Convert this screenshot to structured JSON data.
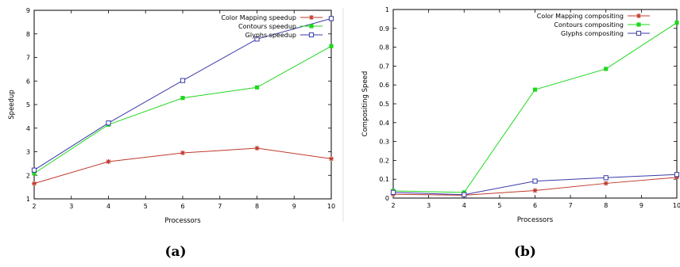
{
  "captions": [
    "(a)",
    "(b)"
  ],
  "chart_data": [
    {
      "type": "line",
      "xlabel": "Processors",
      "ylabel": "Speedup",
      "x": [
        2,
        4,
        6,
        8,
        10
      ],
      "xlim": [
        2,
        10
      ],
      "ylim": [
        1,
        9
      ],
      "xticks": [
        "2",
        "3",
        "4",
        "5",
        "6",
        "7",
        "8",
        "9",
        "10"
      ],
      "yticks": [
        "1",
        "2",
        "3",
        "4",
        "5",
        "6",
        "7",
        "8",
        "9"
      ],
      "grid": false,
      "legend_position": "top-right",
      "series": [
        {
          "name": "Color Mapping speedup",
          "values": [
            1.65,
            2.58,
            2.95,
            3.15,
            2.7
          ],
          "color": "#c0392b",
          "marker": "star"
        },
        {
          "name": "Contours speedup",
          "values": [
            2.08,
            4.15,
            5.28,
            5.73,
            7.48
          ],
          "color": "#1fd81f",
          "marker": "filled-square"
        },
        {
          "name": "Glyphs speedup",
          "values": [
            2.22,
            4.22,
            6.02,
            7.78,
            8.65
          ],
          "color": "#3a3aa8",
          "marker": "open-square"
        }
      ]
    },
    {
      "type": "line",
      "xlabel": "Processors",
      "ylabel": "Compositing Speed",
      "x": [
        2,
        4,
        6,
        8,
        10
      ],
      "xlim": [
        2,
        10
      ],
      "ylim": [
        0,
        1
      ],
      "xticks": [
        "2",
        "3",
        "4",
        "5",
        "6",
        "7",
        "8",
        "9",
        "10"
      ],
      "yticks": [
        "0",
        "0.1",
        "0.2",
        "0.3",
        "0.4",
        "0.5",
        "0.6",
        "0.7",
        "0.8",
        "0.9",
        "1"
      ],
      "grid": false,
      "legend_position": "top-right",
      "series": [
        {
          "name": "Color Mapping compositing",
          "values": [
            0.02,
            0.015,
            0.04,
            0.078,
            0.11
          ],
          "color": "#c0392b",
          "marker": "star"
        },
        {
          "name": "Contours compositing",
          "values": [
            0.038,
            0.03,
            0.575,
            0.685,
            0.93
          ],
          "color": "#1fd81f",
          "marker": "filled-square"
        },
        {
          "name": "Glyphs compositing",
          "values": [
            0.03,
            0.018,
            0.09,
            0.108,
            0.125
          ],
          "color": "#3a3aa8",
          "marker": "open-square"
        }
      ]
    }
  ]
}
